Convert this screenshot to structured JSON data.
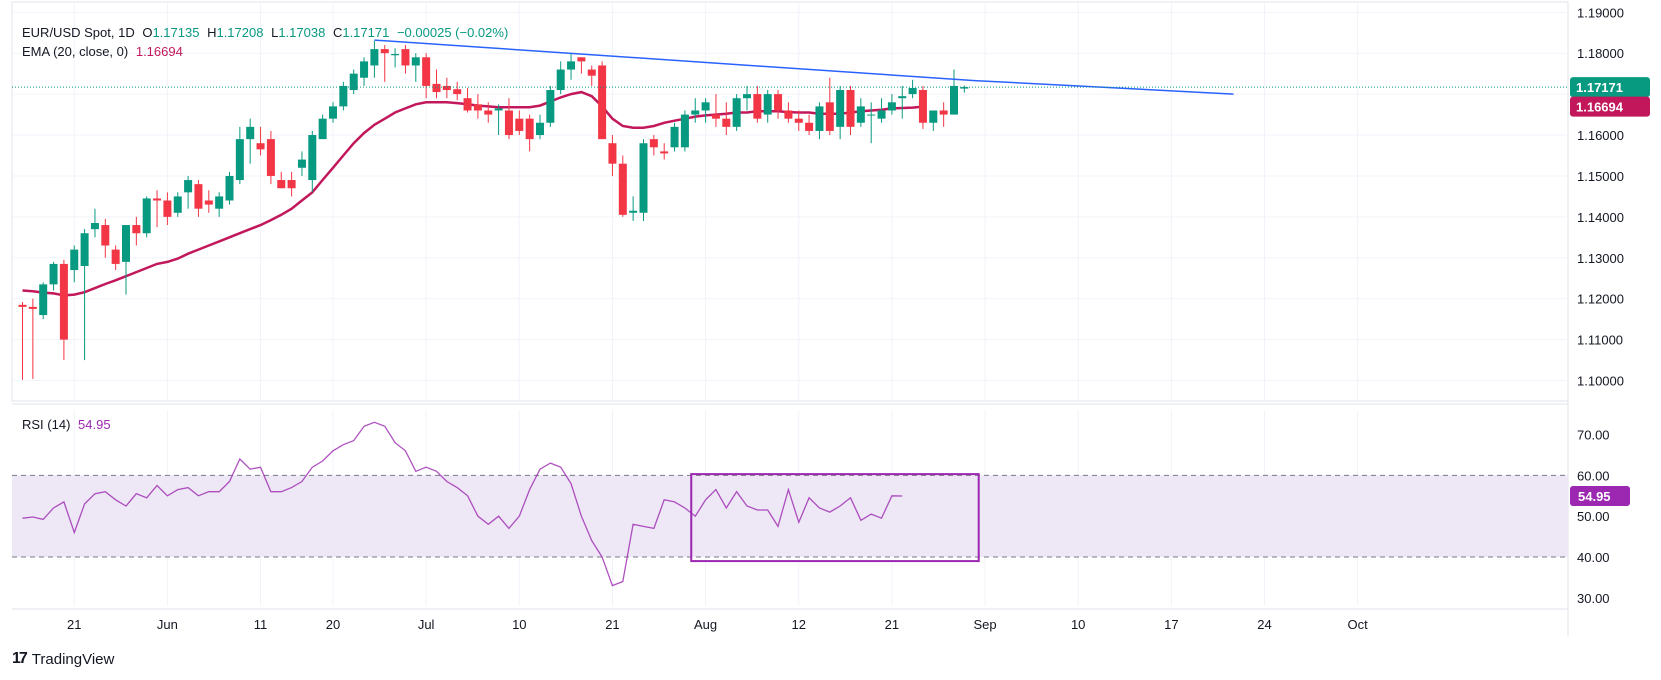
{
  "legend": {
    "symbol": "EUR/USD Spot, 1D",
    "open_label": "O",
    "open": "1.17135",
    "high_label": "H",
    "high": "1.17208",
    "low_label": "L",
    "low": "1.17038",
    "close_label": "C",
    "close": "1.17171",
    "change": "−0.00025 (−0.02%)",
    "ema_label": "EMA (20, close, 0)",
    "ema_value": "1.16694",
    "rsi_label": "RSI (14)",
    "rsi_value": "54.95"
  },
  "brand": "TradingView",
  "colors": {
    "up": "#089981",
    "down": "#f23645",
    "ema": "#c2185b",
    "trendline": "#2962ff",
    "rsi": "#9c27b0",
    "rsi_box": "#9c27b0",
    "price_line": "#089981",
    "band_fill": "#ede7f6"
  },
  "chart_data": [
    {
      "type": "candlestick",
      "title": "EUR/USD Spot, 1D",
      "ylim": [
        1.095,
        1.193
      ],
      "y_ticks": [
        "1.19000",
        "1.18000",
        "1.17000",
        "1.16000",
        "1.15000",
        "1.14000",
        "1.13000",
        "1.12000",
        "1.11000",
        "1.10000"
      ],
      "y_tick_values": [
        1.19,
        1.18,
        1.17,
        1.16,
        1.15,
        1.14,
        1.13,
        1.12,
        1.11,
        1.1
      ],
      "x_ticks": [
        "21",
        "Jun",
        "11",
        "20",
        "Jul",
        "10",
        "21",
        "Aug",
        "12",
        "21",
        "Sep",
        "10",
        "17",
        "24",
        "Oct"
      ],
      "x_tick_index": [
        5,
        14,
        23,
        30,
        39,
        48,
        57,
        66,
        75,
        84,
        93,
        102,
        111,
        120,
        129
      ],
      "last_price_label": "1.17171",
      "ema_label_value": "1.16694",
      "candles": [
        [
          1.1185,
          1.1192,
          1.1002,
          1.118
        ],
        [
          1.118,
          1.12,
          1.1004,
          1.1175
        ],
        [
          1.116,
          1.124,
          1.115,
          1.1235
        ],
        [
          1.1235,
          1.129,
          1.122,
          1.1285
        ],
        [
          1.1285,
          1.1295,
          1.105,
          1.11
        ],
        [
          1.127,
          1.133,
          1.124,
          1.132
        ],
        [
          1.128,
          1.137,
          1.105,
          1.136
        ],
        [
          1.137,
          1.142,
          1.135,
          1.1385
        ],
        [
          1.138,
          1.1395,
          1.13,
          1.133
        ],
        [
          1.132,
          1.133,
          1.127,
          1.1285
        ],
        [
          1.129,
          1.138,
          1.121,
          1.138
        ],
        [
          1.138,
          1.14,
          1.133,
          1.136
        ],
        [
          1.136,
          1.145,
          1.135,
          1.1445
        ],
        [
          1.1445,
          1.1465,
          1.1375,
          1.144
        ],
        [
          1.144,
          1.146,
          1.138,
          1.14
        ],
        [
          1.141,
          1.146,
          1.14,
          1.145
        ],
        [
          1.146,
          1.15,
          1.142,
          1.149
        ],
        [
          1.148,
          1.149,
          1.14,
          1.142
        ],
        [
          1.144,
          1.1465,
          1.141,
          1.143
        ],
        [
          1.142,
          1.146,
          1.14,
          1.145
        ],
        [
          1.144,
          1.151,
          1.143,
          1.15
        ],
        [
          1.149,
          1.162,
          1.148,
          1.159
        ],
        [
          1.159,
          1.164,
          1.153,
          1.162
        ],
        [
          1.158,
          1.162,
          1.155,
          1.1565
        ],
        [
          1.159,
          1.161,
          1.148,
          1.15
        ],
        [
          1.149,
          1.151,
          1.147,
          1.147
        ],
        [
          1.149,
          1.151,
          1.145,
          1.147
        ],
        [
          1.152,
          1.156,
          1.15,
          1.154
        ],
        [
          1.149,
          1.161,
          1.146,
          1.16
        ],
        [
          1.159,
          1.165,
          1.159,
          1.164
        ],
        [
          1.164,
          1.168,
          1.163,
          1.167
        ],
        [
          1.167,
          1.173,
          1.166,
          1.172
        ],
        [
          1.171,
          1.176,
          1.17,
          1.175
        ],
        [
          1.174,
          1.179,
          1.172,
          1.178
        ],
        [
          1.177,
          1.183,
          1.174,
          1.181
        ],
        [
          1.181,
          1.182,
          1.173,
          1.18
        ],
        [
          1.1795,
          1.1812,
          1.1765,
          1.1798
        ],
        [
          1.181,
          1.182,
          1.175,
          1.177
        ],
        [
          1.177,
          1.18,
          1.173,
          1.179
        ],
        [
          1.179,
          1.18,
          1.169,
          1.172
        ],
        [
          1.1725,
          1.176,
          1.169,
          1.1705
        ],
        [
          1.172,
          1.174,
          1.169,
          1.171
        ],
        [
          1.1712,
          1.173,
          1.1685,
          1.17
        ],
        [
          1.169,
          1.1715,
          1.1655,
          1.166
        ],
        [
          1.1675,
          1.17,
          1.164,
          1.166
        ],
        [
          1.166,
          1.168,
          1.163,
          1.165
        ],
        [
          1.166,
          1.1675,
          1.16,
          1.1665
        ],
        [
          1.166,
          1.169,
          1.159,
          1.16
        ],
        [
          1.164,
          1.166,
          1.16,
          1.161
        ],
        [
          1.164,
          1.165,
          1.156,
          1.159
        ],
        [
          1.16,
          1.165,
          1.159,
          1.163
        ],
        [
          1.163,
          1.172,
          1.162,
          1.171
        ],
        [
          1.171,
          1.178,
          1.17,
          1.176
        ],
        [
          1.176,
          1.18,
          1.1735,
          1.178
        ],
        [
          1.179,
          1.179,
          1.175,
          1.178
        ],
        [
          1.176,
          1.177,
          1.172,
          1.1745
        ],
        [
          1.177,
          1.178,
          1.159,
          1.159
        ],
        [
          1.158,
          1.16,
          1.15,
          1.153
        ],
        [
          1.153,
          1.155,
          1.14,
          1.1405
        ],
        [
          1.141,
          1.145,
          1.139,
          1.1415
        ],
        [
          1.141,
          1.159,
          1.139,
          1.158
        ],
        [
          1.159,
          1.16,
          1.155,
          1.157
        ],
        [
          1.156,
          1.158,
          1.154,
          1.1555
        ],
        [
          1.157,
          1.163,
          1.156,
          1.162
        ],
        [
          1.157,
          1.166,
          1.156,
          1.165
        ],
        [
          1.165,
          1.169,
          1.163,
          1.166
        ],
        [
          1.166,
          1.169,
          1.163,
          1.168
        ],
        [
          1.165,
          1.17,
          1.162,
          1.164
        ],
        [
          1.164,
          1.168,
          1.16,
          1.162
        ],
        [
          1.162,
          1.17,
          1.161,
          1.169
        ],
        [
          1.169,
          1.172,
          1.166,
          1.17
        ],
        [
          1.17,
          1.172,
          1.163,
          1.164
        ],
        [
          1.165,
          1.171,
          1.163,
          1.17
        ],
        [
          1.17,
          1.171,
          1.164,
          1.166
        ],
        [
          1.166,
          1.168,
          1.163,
          1.164
        ],
        [
          1.164,
          1.166,
          1.161,
          1.163
        ],
        [
          1.163,
          1.165,
          1.16,
          1.161
        ],
        [
          1.161,
          1.168,
          1.159,
          1.167
        ],
        [
          1.168,
          1.174,
          1.16,
          1.161
        ],
        [
          1.162,
          1.172,
          1.159,
          1.171
        ],
        [
          1.171,
          1.172,
          1.16,
          1.162
        ],
        [
          1.163,
          1.169,
          1.162,
          1.167
        ],
        [
          1.165,
          1.168,
          1.158,
          1.165
        ],
        [
          1.164,
          1.169,
          1.163,
          1.166
        ],
        [
          1.166,
          1.17,
          1.165,
          1.168
        ],
        [
          1.169,
          1.172,
          1.164,
          1.1695
        ],
        [
          1.17,
          1.1735,
          1.169,
          1.1715
        ],
        [
          1.171,
          1.172,
          1.1615,
          1.163
        ],
        [
          1.163,
          1.166,
          1.161,
          1.166
        ],
        [
          1.166,
          1.168,
          1.162,
          1.165
        ],
        [
          1.165,
          1.176,
          1.165,
          1.172
        ],
        [
          1.17135,
          1.17208,
          1.17038,
          1.17171
        ]
      ],
      "ema": [
        1.122,
        1.1218,
        1.1215,
        1.1213,
        1.1208,
        1.121,
        1.1216,
        1.1226,
        1.1236,
        1.1245,
        1.1255,
        1.1265,
        1.1275,
        1.1285,
        1.129,
        1.1298,
        1.131,
        1.132,
        1.133,
        1.134,
        1.135,
        1.136,
        1.137,
        1.138,
        1.1392,
        1.1405,
        1.142,
        1.144,
        1.146,
        1.149,
        1.152,
        1.155,
        1.158,
        1.1605,
        1.1625,
        1.164,
        1.1655,
        1.1665,
        1.1675,
        1.168,
        1.168,
        1.168,
        1.1678,
        1.1675,
        1.1672,
        1.167,
        1.1668,
        1.1668,
        1.1668,
        1.1668,
        1.1672,
        1.1682,
        1.1692,
        1.17,
        1.1705,
        1.1695,
        1.167,
        1.164,
        1.1622,
        1.1618,
        1.1618,
        1.1622,
        1.163,
        1.1635,
        1.164,
        1.1645,
        1.1648,
        1.165,
        1.1652,
        1.1655,
        1.1655,
        1.1658,
        1.1658,
        1.1658,
        1.1656,
        1.1655,
        1.1655,
        1.1652,
        1.1652,
        1.1652,
        1.1655,
        1.1658,
        1.166,
        1.1662,
        1.1665,
        1.1666,
        1.1667,
        1.16694
      ],
      "trendline": [
        [
          34,
          1.1832
        ],
        [
          92,
          1.1733
        ],
        [
          117,
          1.17
        ]
      ]
    },
    {
      "type": "line",
      "title": "RSI (14)",
      "ylim": [
        28,
        76
      ],
      "y_ticks": [
        "70.00",
        "60.00",
        "50.00",
        "40.00",
        "30.00"
      ],
      "y_tick_values": [
        70,
        60,
        50,
        40,
        30
      ],
      "band": [
        40,
        60
      ],
      "band_levels": [
        60,
        40
      ],
      "last_label": "54.95",
      "values": [
        49.5,
        49.8,
        49.2,
        52.0,
        53.5,
        46.0,
        53.0,
        55.5,
        56.0,
        54.0,
        52.5,
        55.5,
        54.5,
        57.5,
        55.0,
        56.5,
        57.0,
        55.0,
        56.0,
        56.0,
        58.5,
        64.0,
        61.5,
        62.0,
        56.0,
        56.0,
        57.0,
        58.5,
        62.0,
        63.5,
        66.0,
        67.5,
        68.5,
        72.0,
        73.0,
        72.0,
        68.0,
        66.0,
        61.0,
        62.0,
        61.0,
        58.5,
        57.0,
        55.0,
        50.0,
        48.0,
        50.0,
        47.0,
        50.0,
        56.5,
        61.5,
        63.0,
        62.0,
        58.0,
        50.0,
        44.0,
        40.0,
        33.0,
        34.0,
        48.0,
        47.5,
        47.0,
        54.0,
        53.5,
        52.0,
        50.0,
        54.0,
        56.5,
        52.0,
        56.0,
        52.5,
        51.5,
        51.5,
        47.5,
        56.5,
        48.5,
        54.5,
        52.0,
        51.0,
        52.5,
        54.5,
        49.0,
        50.5,
        49.5,
        55.0,
        54.95
      ],
      "highlight_box": {
        "x_from": 65,
        "x_to": 92,
        "y_from": 39,
        "y_to": 60.3
      }
    }
  ]
}
